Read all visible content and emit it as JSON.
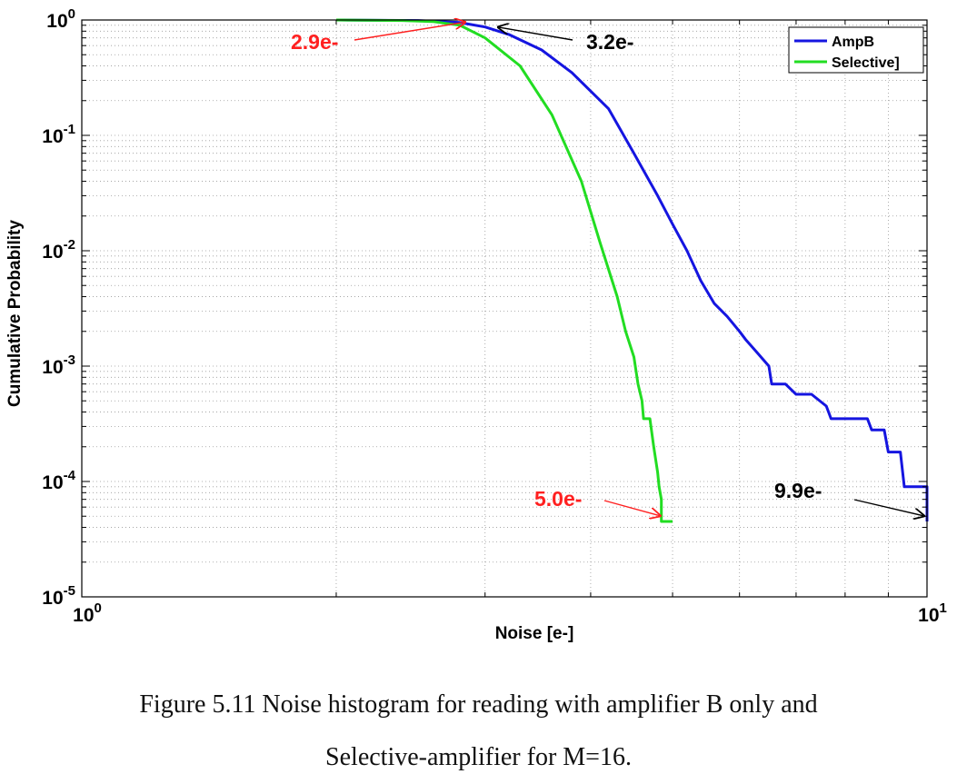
{
  "chart_data": {
    "type": "line",
    "title": "",
    "xlabel": "Noise [e-]",
    "ylabel": "Cumulative Probability",
    "xscale": "log",
    "yscale": "log",
    "xlim": [
      1,
      10
    ],
    "ylim": [
      1e-05,
      1
    ],
    "grid": true,
    "x_ticks": [
      {
        "base": "10",
        "exp": "0"
      },
      {
        "base": "10",
        "exp": "1"
      }
    ],
    "y_ticks": [
      {
        "base": "10",
        "exp": "0"
      },
      {
        "base": "10",
        "exp": "-1"
      },
      {
        "base": "10",
        "exp": "-2"
      },
      {
        "base": "10",
        "exp": "-3"
      },
      {
        "base": "10",
        "exp": "-4"
      },
      {
        "base": "10",
        "exp": "-5"
      }
    ],
    "legend": {
      "position": "top-right",
      "entries": [
        "AmpB",
        "Selective]"
      ]
    },
    "series": [
      {
        "name": "AmpB",
        "color": "#1515e0",
        "x": [
          2.0,
          2.5,
          2.8,
          3.0,
          3.2,
          3.5,
          3.8,
          4.2,
          4.5,
          4.8,
          5.0,
          5.2,
          5.4,
          5.6,
          5.8,
          6.0,
          6.1,
          6.3,
          6.5,
          6.55,
          6.8,
          7.0,
          7.03,
          7.3,
          7.6,
          7.7,
          7.9,
          8.0,
          8.5,
          8.6,
          8.9,
          9.0,
          9.3,
          9.4,
          10.0,
          10.0
        ],
        "y": [
          1.0,
          0.99,
          0.95,
          0.87,
          0.75,
          0.55,
          0.35,
          0.17,
          0.07,
          0.03,
          0.017,
          0.01,
          0.0055,
          0.0035,
          0.0027,
          0.002,
          0.0017,
          0.0013,
          0.001,
          0.0007,
          0.0007,
          0.00057,
          0.00057,
          0.00057,
          0.00045,
          0.00035,
          0.00035,
          0.00035,
          0.00035,
          0.00028,
          0.00028,
          0.00018,
          0.00018,
          9e-05,
          9e-05,
          4.5e-05
        ]
      },
      {
        "name": "Selective]",
        "color": "#22dd22",
        "x": [
          2.0,
          2.4,
          2.6,
          2.8,
          3.0,
          3.3,
          3.6,
          3.9,
          4.1,
          4.3,
          4.4,
          4.5,
          4.55,
          4.6,
          4.62,
          4.7,
          4.75,
          4.8,
          4.82,
          4.85,
          4.85,
          5.0
        ],
        "y": [
          1.0,
          0.99,
          0.97,
          0.9,
          0.7,
          0.4,
          0.15,
          0.04,
          0.012,
          0.004,
          0.002,
          0.0012,
          0.0007,
          0.0005,
          0.00035,
          0.00035,
          0.0002,
          0.00012,
          9e-05,
          7e-05,
          4.5e-05,
          4.5e-05
        ]
      }
    ],
    "annotations": [
      {
        "text": "2.9e-",
        "color": "#ff2020",
        "target": [
          2.85,
          0.96
        ]
      },
      {
        "text": "3.2e-",
        "color": "#000000",
        "target": [
          3.1,
          0.87
        ]
      },
      {
        "text": "5.0e-",
        "color": "#ff2020",
        "target": [
          4.85,
          5e-05
        ]
      },
      {
        "text": "9.9e-",
        "color": "#000000",
        "target": [
          9.95,
          5e-05
        ]
      }
    ]
  },
  "caption": {
    "line1": "Figure 5.11 Noise histogram for reading with amplifier B only and",
    "line2": "Selective-amplifier for M=16."
  }
}
